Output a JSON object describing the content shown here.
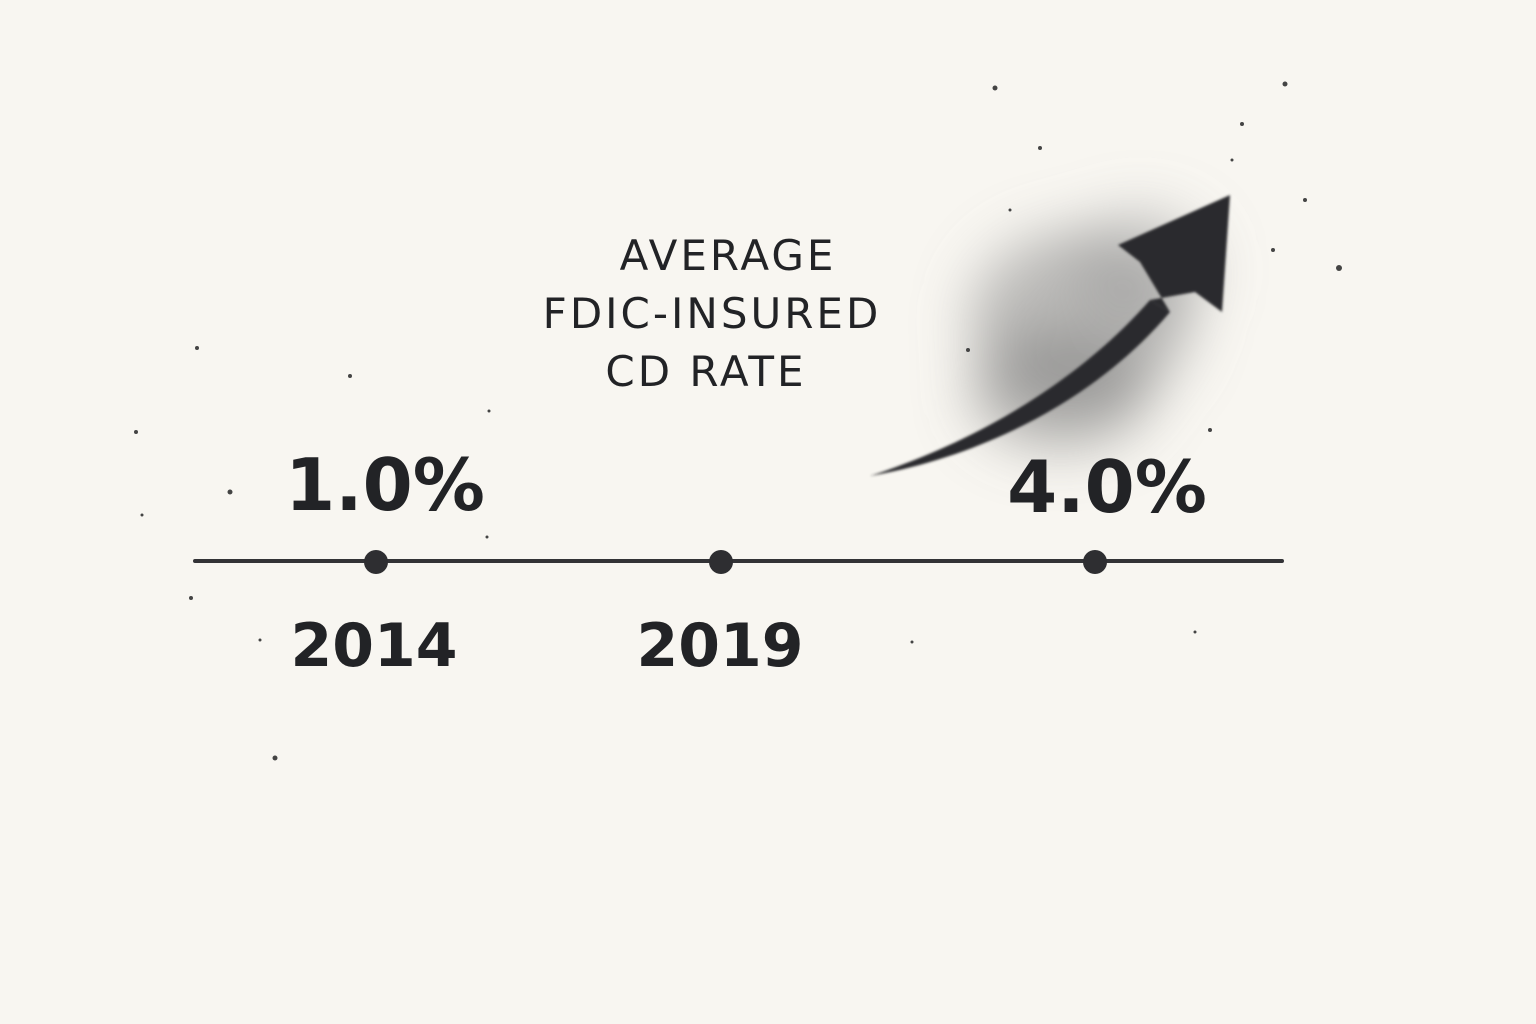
{
  "title": [
    "AVERAGE",
    "FDIC-INSURED",
    "CD RATE"
  ],
  "points": [
    {
      "year": "2014",
      "rate": "1.0%"
    },
    {
      "year": "2019"
    },
    {
      "rate": "4.0%"
    }
  ]
}
